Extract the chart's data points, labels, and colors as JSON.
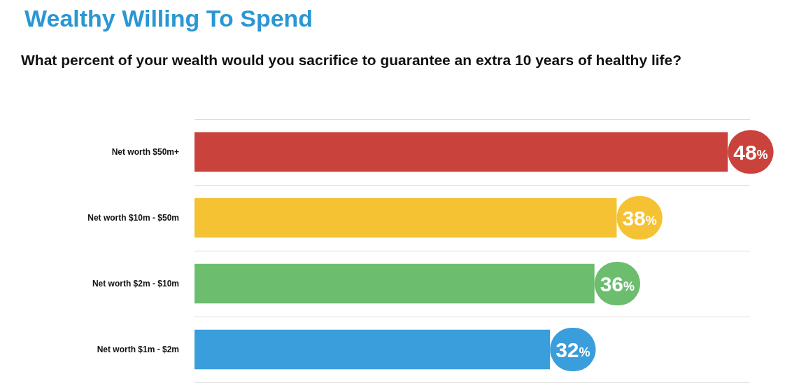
{
  "chart_data": {
    "type": "bar",
    "orientation": "horizontal",
    "title": "Wealthy Willing To Spend",
    "subtitle": "What percent of your wealth would you sacrifice to guarantee an extra 10 years of healthy life?",
    "categories": [
      "Net worth $50m+",
      "Net worth $10m - $50m",
      "Net worth $2m - $10m",
      "Net worth $1m - $2m"
    ],
    "values": [
      48,
      38,
      36,
      32
    ],
    "colors": [
      "#c9433c",
      "#f4c233",
      "#6cbd6e",
      "#3a9ddc"
    ],
    "value_labels": [
      "48%",
      "38%",
      "36%",
      "32%"
    ],
    "grid": "y",
    "tick_labels": "y"
  }
}
